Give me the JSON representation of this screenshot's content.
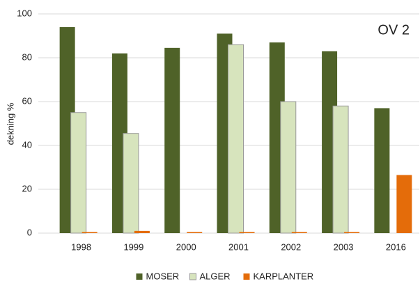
{
  "chart_data": {
    "type": "bar",
    "annotation": "OV 2",
    "y_label": "dekning %",
    "categories": [
      "1998",
      "1999",
      "2000",
      "2001",
      "2002",
      "2003",
      "2016"
    ],
    "series": [
      {
        "name": "MOSER",
        "color": "#4f6228",
        "values": [
          94,
          82,
          84.5,
          91,
          87,
          83,
          57
        ]
      },
      {
        "name": "ALGER",
        "color": "#d7e4bd",
        "values": [
          55,
          45.5,
          0,
          86,
          60,
          58,
          0
        ]
      },
      {
        "name": "KARPLANTER",
        "color": "#e46c0a",
        "values": [
          0.5,
          1,
          0.5,
          0.5,
          0.5,
          0.5,
          26.5
        ]
      }
    ],
    "ylim": [
      0,
      100
    ],
    "yticks": [
      0,
      20,
      40,
      60,
      80,
      100
    ],
    "grid": true,
    "legend": "bottom"
  }
}
